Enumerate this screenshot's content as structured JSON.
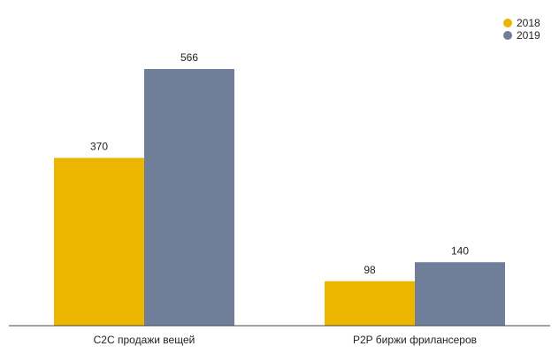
{
  "chart_data": {
    "type": "bar",
    "title": "",
    "xlabel": "",
    "ylabel": "",
    "categories": [
      "C2C продажи вещей",
      "P2P биржи фрилансеров"
    ],
    "series": [
      {
        "name": "2018",
        "values": [
          370,
          98
        ],
        "color": "#ecb500"
      },
      {
        "name": "2019",
        "values": [
          566,
          140
        ],
        "color": "#6f7e99"
      }
    ],
    "ylim": [
      0,
      600
    ],
    "grid": false,
    "legend_position": "top-right",
    "data_labels": true
  }
}
